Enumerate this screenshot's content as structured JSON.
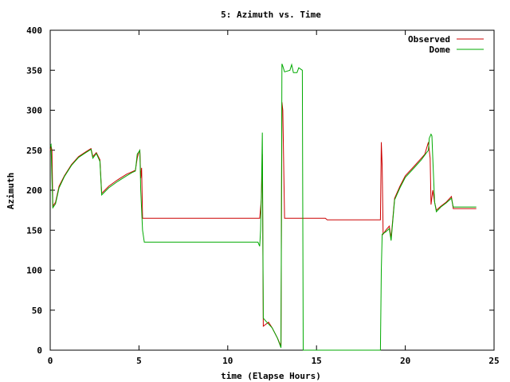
{
  "chart_data": {
    "type": "line",
    "title": "5: Azimuth vs. Time",
    "xlabel": "time (Elapse Hours)",
    "ylabel": "Azimuth",
    "xlim": [
      0,
      25
    ],
    "ylim": [
      0,
      400
    ],
    "xticks": [
      0,
      5,
      10,
      15,
      20,
      25
    ],
    "yticks": [
      0,
      50,
      100,
      150,
      200,
      250,
      300,
      350,
      400
    ],
    "grid": false,
    "legend_position": "top-right",
    "series": [
      {
        "name": "Observed",
        "color": "#cc0000",
        "points": [
          [
            0.0,
            250
          ],
          [
            0.05,
            255
          ],
          [
            0.1,
            250
          ],
          [
            0.15,
            180
          ],
          [
            0.3,
            185
          ],
          [
            0.5,
            205
          ],
          [
            0.8,
            218
          ],
          [
            1.2,
            232
          ],
          [
            1.6,
            242
          ],
          [
            2.0,
            248
          ],
          [
            2.3,
            252
          ],
          [
            2.4,
            242
          ],
          [
            2.6,
            247
          ],
          [
            2.8,
            238
          ],
          [
            2.9,
            196
          ],
          [
            3.3,
            205
          ],
          [
            3.8,
            213
          ],
          [
            4.3,
            220
          ],
          [
            4.6,
            223
          ],
          [
            4.8,
            225
          ],
          [
            4.9,
            240
          ],
          [
            5.0,
            248
          ],
          [
            5.05,
            250
          ],
          [
            5.1,
            215
          ],
          [
            5.15,
            228
          ],
          [
            5.2,
            165
          ],
          [
            11.8,
            165
          ],
          [
            11.9,
            190
          ],
          [
            11.95,
            245
          ],
          [
            12.0,
            30
          ],
          [
            12.3,
            35
          ],
          [
            12.5,
            28
          ],
          [
            12.8,
            15
          ],
          [
            13.0,
            5
          ],
          [
            13.05,
            310
          ],
          [
            13.1,
            300
          ],
          [
            13.2,
            165
          ],
          [
            15.5,
            165
          ],
          [
            15.6,
            163
          ],
          [
            18.6,
            163
          ],
          [
            18.65,
            260
          ],
          [
            18.7,
            230
          ],
          [
            18.75,
            145
          ],
          [
            18.9,
            150
          ],
          [
            19.1,
            155
          ],
          [
            19.2,
            140
          ],
          [
            19.4,
            190
          ],
          [
            19.7,
            205
          ],
          [
            20.0,
            218
          ],
          [
            20.5,
            230
          ],
          [
            20.9,
            240
          ],
          [
            21.1,
            245
          ],
          [
            21.3,
            260
          ],
          [
            21.35,
            250
          ],
          [
            21.4,
            240
          ],
          [
            21.45,
            182
          ],
          [
            21.55,
            200
          ],
          [
            21.65,
            185
          ],
          [
            21.75,
            175
          ],
          [
            22.0,
            180
          ],
          [
            22.3,
            185
          ],
          [
            22.6,
            192
          ],
          [
            22.7,
            177
          ],
          [
            24.0,
            177
          ]
        ]
      },
      {
        "name": "Dome",
        "color": "#00aa00",
        "points": [
          [
            0.0,
            255
          ],
          [
            0.05,
            257
          ],
          [
            0.1,
            215
          ],
          [
            0.15,
            178
          ],
          [
            0.3,
            183
          ],
          [
            0.5,
            203
          ],
          [
            0.8,
            217
          ],
          [
            1.2,
            231
          ],
          [
            1.6,
            241
          ],
          [
            2.0,
            247
          ],
          [
            2.3,
            251
          ],
          [
            2.4,
            240
          ],
          [
            2.6,
            246
          ],
          [
            2.8,
            236
          ],
          [
            2.9,
            194
          ],
          [
            3.3,
            203
          ],
          [
            3.8,
            211
          ],
          [
            4.3,
            218
          ],
          [
            4.6,
            222
          ],
          [
            4.8,
            224
          ],
          [
            4.9,
            245
          ],
          [
            5.05,
            250
          ],
          [
            5.1,
            200
          ],
          [
            5.2,
            150
          ],
          [
            5.3,
            135
          ],
          [
            11.7,
            135
          ],
          [
            11.8,
            130
          ],
          [
            11.85,
            150
          ],
          [
            11.9,
            200
          ],
          [
            11.95,
            272
          ],
          [
            12.0,
            40
          ],
          [
            12.2,
            35
          ],
          [
            12.5,
            28
          ],
          [
            12.8,
            15
          ],
          [
            13.0,
            3
          ],
          [
            13.05,
            358
          ],
          [
            13.1,
            355
          ],
          [
            13.2,
            348
          ],
          [
            13.5,
            350
          ],
          [
            13.6,
            357
          ],
          [
            13.7,
            347
          ],
          [
            13.9,
            347
          ],
          [
            14.0,
            353
          ],
          [
            14.2,
            350
          ],
          [
            14.25,
            0
          ],
          [
            18.6,
            0
          ],
          [
            18.65,
            100
          ],
          [
            18.7,
            145
          ],
          [
            18.9,
            148
          ],
          [
            19.1,
            152
          ],
          [
            19.2,
            137
          ],
          [
            19.4,
            188
          ],
          [
            19.7,
            203
          ],
          [
            20.0,
            216
          ],
          [
            20.5,
            228
          ],
          [
            20.9,
            238
          ],
          [
            21.1,
            244
          ],
          [
            21.3,
            250
          ],
          [
            21.35,
            265
          ],
          [
            21.45,
            270
          ],
          [
            21.5,
            268
          ],
          [
            21.55,
            240
          ],
          [
            21.65,
            185
          ],
          [
            21.75,
            173
          ],
          [
            22.0,
            179
          ],
          [
            22.3,
            184
          ],
          [
            22.6,
            190
          ],
          [
            22.7,
            179
          ],
          [
            24.0,
            179
          ]
        ]
      }
    ]
  }
}
